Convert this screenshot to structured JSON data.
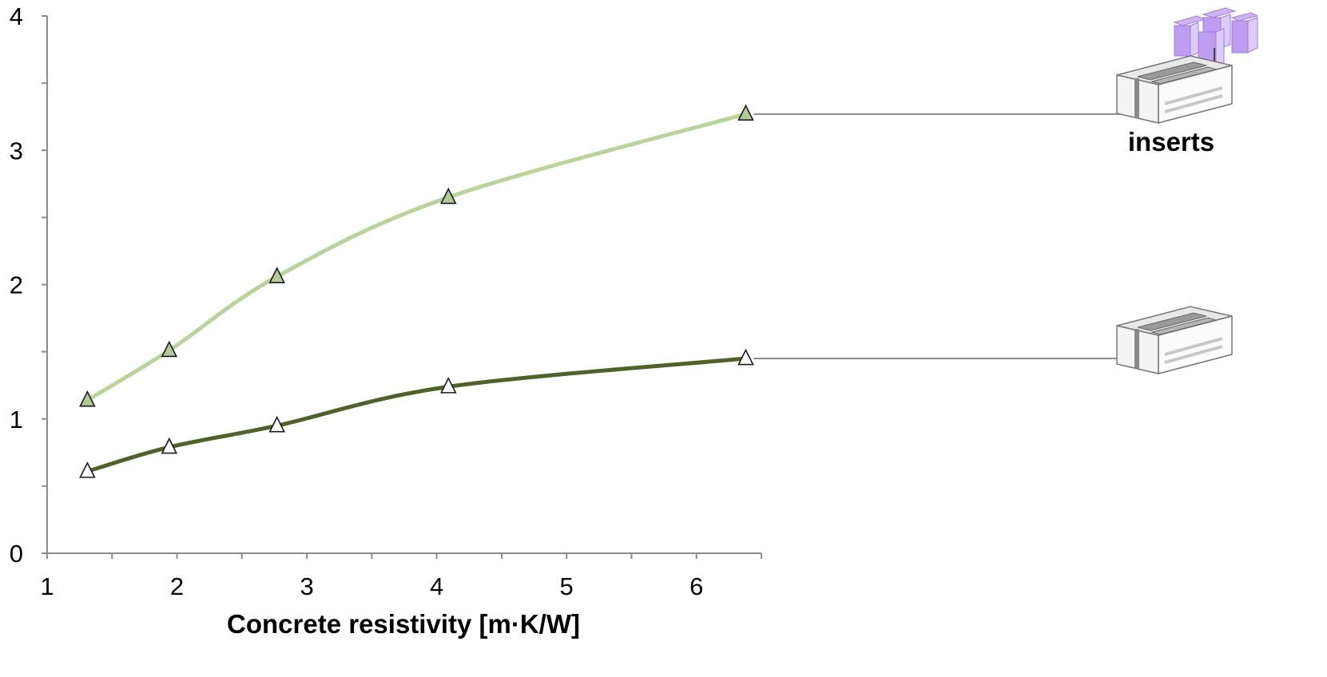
{
  "chart_data": {
    "type": "line",
    "title": "",
    "xlabel": "Concrete resistivity [m·K/W]",
    "ylabel": "",
    "xlim": [
      1,
      6.5
    ],
    "ylim": [
      0,
      4
    ],
    "xticks": [
      1,
      2,
      3,
      4,
      5,
      6
    ],
    "yticks": [
      0,
      1,
      2,
      3,
      4
    ],
    "grid": false,
    "series": [
      {
        "color": "#b9d39a",
        "marker_fill": "#b3c99a",
        "marker": "triangle",
        "x": [
          1.31,
          1.94,
          2.77,
          4.09,
          6.38
        ],
        "y": [
          1.14,
          1.51,
          2.06,
          2.65,
          3.27
        ]
      },
      {
        "color": "#4f6228",
        "marker_fill": "#ffffff",
        "marker": "triangle",
        "x": [
          1.31,
          1.94,
          2.77,
          4.09,
          6.38
        ],
        "y": [
          0.61,
          0.79,
          0.95,
          1.24,
          1.45
        ]
      }
    ],
    "annotations": [
      {
        "series_index": 0,
        "text": "inserts",
        "icon": "block-with-inserts-icon"
      },
      {
        "series_index": 1,
        "text": "",
        "icon": "hollow-block-icon"
      }
    ]
  }
}
